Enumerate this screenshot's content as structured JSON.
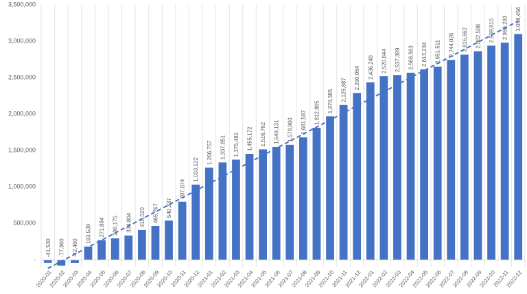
{
  "chart_data": {
    "type": "bar",
    "categories": [
      "2020-01",
      "2020-02",
      "2020-03",
      "2020-04",
      "2020-05",
      "2020-06",
      "2020-07",
      "2020-08",
      "2020-09",
      "2020-10",
      "2020-11",
      "2020-12",
      "2021-01",
      "2021-02",
      "2021-03",
      "2021-04",
      "2021-05",
      "2021-06",
      "2021-07",
      "2021-08",
      "2021-09",
      "2021-10",
      "2021-11",
      "2021-12",
      "2022-01",
      "2022-02",
      "2022-03",
      "2022-04",
      "2022-05",
      "2022-06",
      "2022-07",
      "2022-08",
      "2022-09",
      "2022-10",
      "2022-11",
      "2022-12"
    ],
    "values": [
      -41530,
      -77960,
      -42460,
      183539,
      271884,
      296175,
      334804,
      410020,
      465767,
      540337,
      797874,
      1033122,
      1266757,
      1337851,
      1375481,
      1455172,
      1516762,
      1549131,
      1578960,
      1681587,
      1812865,
      1970385,
      2125887,
      2290064,
      2436249,
      2520844,
      2537389,
      2568563,
      2613234,
      2651511,
      2744026,
      2816662,
      2862598,
      2939810,
      2980293,
      3098456
    ],
    "value_labels": [
      "-41,530",
      "-77,960",
      "-42,460",
      "183,539",
      "271,884",
      "296,175",
      "334,804",
      "410,020",
      "465,767",
      "540,337",
      "797,874",
      "1,033,122",
      "1,266,757",
      "1,337,851",
      "1,375,481",
      "1,455,172",
      "1,516,762",
      "1,549,131",
      "1,578,960",
      "1,681,587",
      "1,812,865",
      "1,970,385",
      "2,125,887",
      "2,290,064",
      "2,436,249",
      "2,520,844",
      "2,537,389",
      "2,568,563",
      "2,613,234",
      "2,651,511",
      "2,744,026",
      "2,816,662",
      "2,862,598",
      "2,939,810",
      "2,980,293",
      "3,098,456"
    ],
    "color": "#4472c4",
    "ylim": [
      -100000,
      3500000
    ],
    "yticks": [
      {
        "value": 0,
        "label": "-"
      },
      {
        "value": 500000,
        "label": "500,000"
      },
      {
        "value": 1000000,
        "label": "1,000,000"
      },
      {
        "value": 1500000,
        "label": "1,500,000"
      },
      {
        "value": 2000000,
        "label": "2,000,000"
      },
      {
        "value": 2500000,
        "label": "2,500,000"
      },
      {
        "value": 3000000,
        "label": "3,000,000"
      },
      {
        "value": 3500000,
        "label": "3,500,000"
      }
    ],
    "trendline": true,
    "trendline_color": "#4472c4"
  }
}
